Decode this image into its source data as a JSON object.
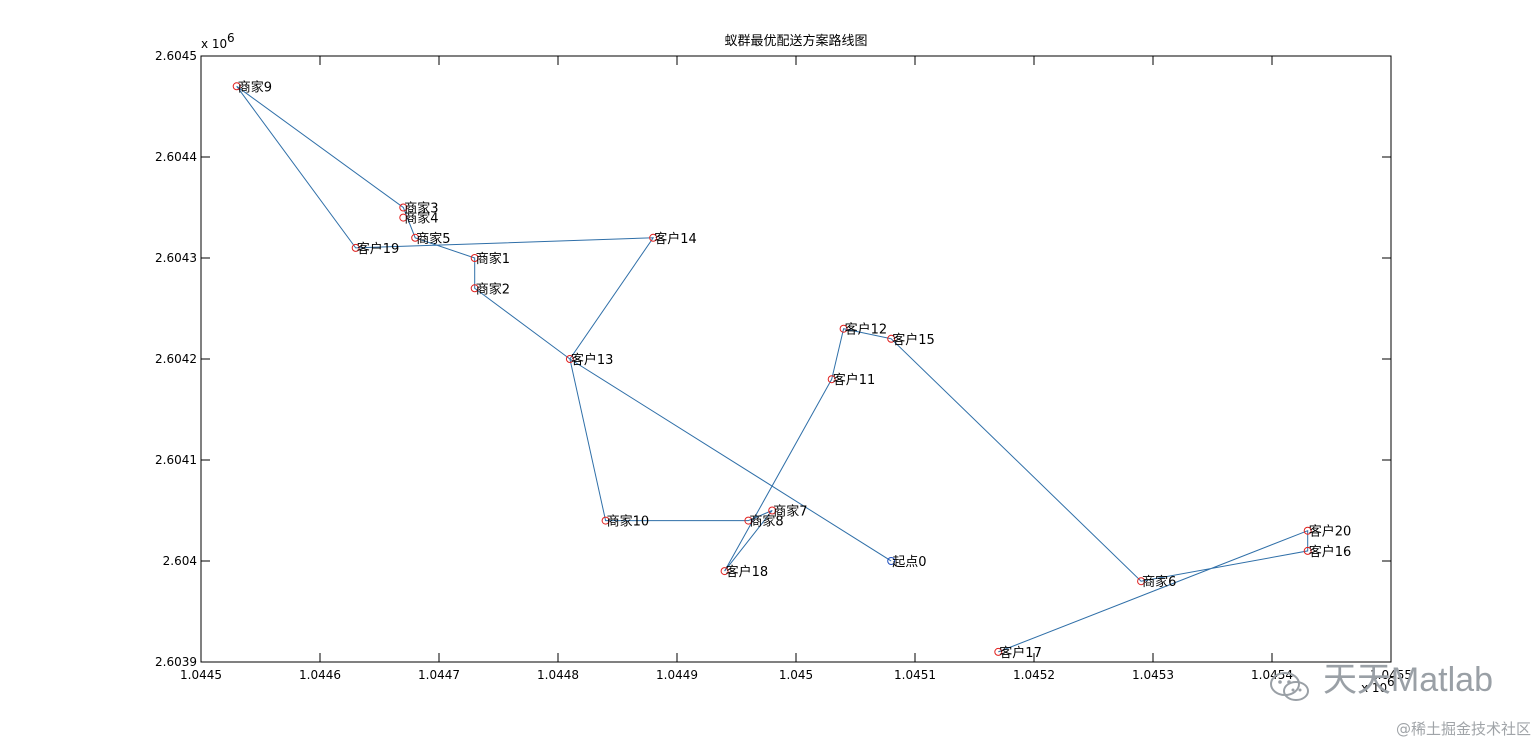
{
  "chart_data": {
    "type": "line",
    "title": "蚁群最优配送方案路线图",
    "xlabel": "",
    "ylabel": "",
    "xlim": [
      1.0445,
      1.0455
    ],
    "ylim": [
      2.6039,
      2.6045
    ],
    "x_exponent_label": "x 10",
    "x_exponent_power": "6",
    "y_exponent_label": "x 10",
    "y_exponent_power": "6",
    "x_ticks": [
      "1.0445",
      "1.0446",
      "1.0447",
      "1.0448",
      "1.0449",
      "1.045",
      "1.0451",
      "1.0452",
      "1.0453",
      "1.0454",
      "1.0455"
    ],
    "x_tick_values": [
      1.0445,
      1.0446,
      1.0447,
      1.0448,
      1.0449,
      1.045,
      1.0451,
      1.0452,
      1.0453,
      1.0454,
      1.0455
    ],
    "y_ticks": [
      "2.6039",
      "2.604",
      "2.6041",
      "2.6042",
      "2.6043",
      "2.6044",
      "2.6045"
    ],
    "y_tick_values": [
      2.6039,
      2.604,
      2.6041,
      2.6042,
      2.6043,
      2.6044,
      2.6045
    ],
    "grid": false,
    "line_color": "#2f6fa8",
    "marker_color": "#e0201e",
    "points": [
      {
        "label": "起点0",
        "x": 1.04508,
        "y": 2.604
      },
      {
        "label": "商家1",
        "x": 1.04473,
        "y": 2.6043
      },
      {
        "label": "商家2",
        "x": 1.04473,
        "y": 2.60427
      },
      {
        "label": "商家3",
        "x": 1.04467,
        "y": 2.60435
      },
      {
        "label": "商家4",
        "x": 1.04467,
        "y": 2.60434
      },
      {
        "label": "商家5",
        "x": 1.04468,
        "y": 2.60432
      },
      {
        "label": "商家6",
        "x": 1.04529,
        "y": 2.60398
      },
      {
        "label": "商家7",
        "x": 1.04498,
        "y": 2.60405
      },
      {
        "label": "商家8",
        "x": 1.04496,
        "y": 2.60404
      },
      {
        "label": "商家9",
        "x": 1.04453,
        "y": 2.60447
      },
      {
        "label": "商家10",
        "x": 1.04484,
        "y": 2.60404
      },
      {
        "label": "客户11",
        "x": 1.04503,
        "y": 2.60418
      },
      {
        "label": "客户12",
        "x": 1.04504,
        "y": 2.60423
      },
      {
        "label": "客户13",
        "x": 1.04481,
        "y": 2.6042
      },
      {
        "label": "客户14",
        "x": 1.04488,
        "y": 2.60432
      },
      {
        "label": "客户15",
        "x": 1.04508,
        "y": 2.60422
      },
      {
        "label": "客户16",
        "x": 1.04543,
        "y": 2.60401
      },
      {
        "label": "客户17",
        "x": 1.04517,
        "y": 2.60391
      },
      {
        "label": "客户18",
        "x": 1.04494,
        "y": 2.60399
      },
      {
        "label": "客户19",
        "x": 1.04463,
        "y": 2.60431
      },
      {
        "label": "客户20",
        "x": 1.04543,
        "y": 2.60403
      }
    ],
    "route": [
      "起点0",
      "客户13",
      "商家2",
      "商家1",
      "商家5",
      "商家3",
      "商家9",
      "客户19",
      "客户14",
      "客户13",
      "商家10",
      "商家8",
      "商家7",
      "客户18",
      "客户11",
      "客户12",
      "客户15",
      "商家6",
      "客户16",
      "客户20",
      "客户17"
    ]
  },
  "watermark": {
    "main": "天天Matlab",
    "sub": "@稀土掘金技术社区"
  }
}
